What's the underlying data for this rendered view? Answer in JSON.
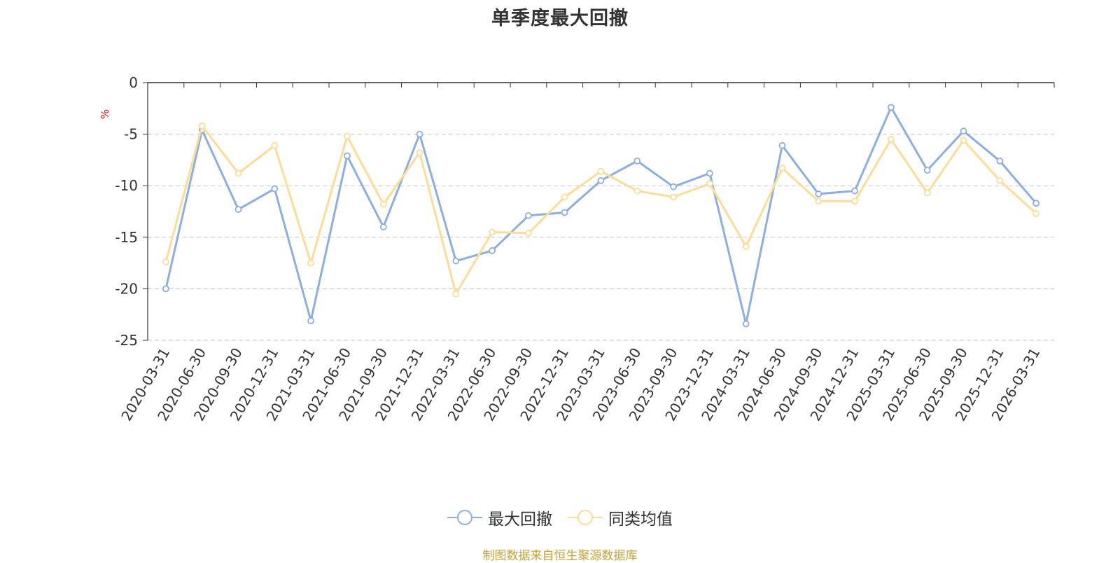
{
  "chart_data": {
    "type": "line",
    "title": "单季度最大回撤",
    "ylabel": "%",
    "xlabel": "",
    "ylim": [
      -25,
      0
    ],
    "yticks": [
      0,
      -5,
      -10,
      -15,
      -20,
      -25
    ],
    "grid": true,
    "legend_position": "bottom",
    "categories": [
      "2020-03-31",
      "2020-06-30",
      "2020-09-30",
      "2020-12-31",
      "2021-03-31",
      "2021-06-30",
      "2021-09-30",
      "2021-12-31",
      "2022-03-31",
      "2022-06-30",
      "2022-09-30",
      "2022-12-31",
      "2023-03-31",
      "2023-06-30",
      "2023-09-30",
      "2023-12-31",
      "2024-03-31",
      "2024-06-30",
      "2024-09-30",
      "2024-12-31",
      "2025-03-31",
      "2025-06-30",
      "2025-09-30",
      "2025-12-31",
      "2026-03-31"
    ],
    "series": [
      {
        "name": "最大回撤",
        "color": "#8eaedc",
        "values": [
          -20.0,
          -4.6,
          -12.3,
          -10.3,
          -23.1,
          -7.1,
          -14.0,
          -5.0,
          -17.3,
          -16.3,
          -12.9,
          -12.6,
          -9.5,
          -7.6,
          -10.1,
          -8.8,
          -23.4,
          -6.1,
          -10.8,
          -10.5,
          -2.4,
          -8.5,
          -4.7,
          -7.6,
          -11.7
        ]
      },
      {
        "name": "同类均值",
        "color": "#fbdc9a",
        "values": [
          -17.4,
          -4.2,
          -8.8,
          -6.1,
          -17.5,
          -5.2,
          -11.8,
          -6.8,
          -20.5,
          -14.5,
          -14.6,
          -11.1,
          -8.6,
          -10.5,
          -11.1,
          -9.8,
          -15.9,
          -8.3,
          -11.5,
          -11.5,
          -5.5,
          -10.7,
          -5.6,
          -9.5,
          -12.7
        ]
      }
    ],
    "source": "制图数据来自恒生聚源数据库"
  }
}
